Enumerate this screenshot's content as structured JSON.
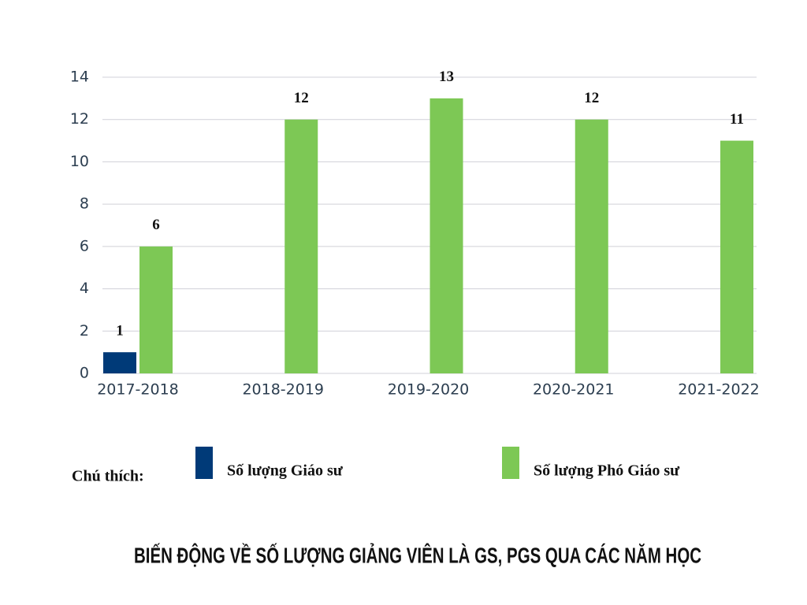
{
  "chart_data": {
    "type": "bar",
    "title": "BIẾN ĐỘNG VỀ SỐ LƯỢNG GIẢNG VIÊN LÀ GS, PGS QUA CÁC NĂM HỌC",
    "legend_title": "Chú thích:",
    "categories": [
      "2017-2018",
      "2018-2019",
      "2019-2020",
      "2020-2021",
      "2021-2022"
    ],
    "series": [
      {
        "name": "Số lượng Giáo sư",
        "color": "#003a78",
        "values": [
          1,
          null,
          null,
          null,
          null
        ]
      },
      {
        "name": "Số lượng Phó Giáo sư",
        "color": "#7dc855",
        "values": [
          6,
          12,
          13,
          12,
          11
        ]
      }
    ],
    "ylim": [
      0,
      14
    ],
    "yticks": [
      0,
      2,
      4,
      6,
      8,
      10,
      12,
      14
    ],
    "grid": true
  }
}
